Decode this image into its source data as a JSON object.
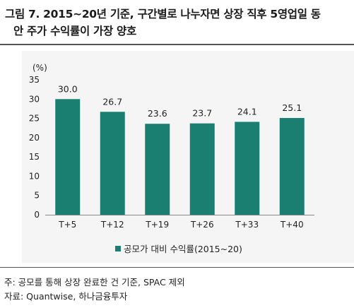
{
  "figure": {
    "title_line1": "그림 7. 2015~20년 기준, 구간별로 나누자면 상장 직후 5영업일 동",
    "title_line2": "안 주가 수익률이 가장 양호"
  },
  "notes": {
    "note1": "주: 공모를 통해 상장 완료한 건 기준, SPAC 제외",
    "source": "자료: Quantwise, 하나금융투자"
  },
  "colors": {
    "bar": "#1a7e71",
    "axis": "#888888",
    "text": "#222222"
  },
  "chart_data": {
    "type": "bar",
    "title": "",
    "xlabel": "",
    "ylabel": "",
    "y_unit_label": "(%)",
    "categories": [
      "T+5",
      "T+12",
      "T+19",
      "T+26",
      "T+33",
      "T+40"
    ],
    "series": [
      {
        "name": "공모가 대비 수익률(2015~20)",
        "values": [
          30.0,
          26.7,
          23.6,
          23.7,
          24.1,
          25.1
        ]
      }
    ],
    "data_labels": [
      "30.0",
      "26.7",
      "23.6",
      "23.7",
      "24.1",
      "25.1"
    ],
    "yticks": [
      "0",
      "5",
      "10",
      "15",
      "20",
      "25",
      "30",
      "35"
    ],
    "ylim": [
      0,
      35
    ],
    "grid": false,
    "legend_position": "bottom"
  }
}
